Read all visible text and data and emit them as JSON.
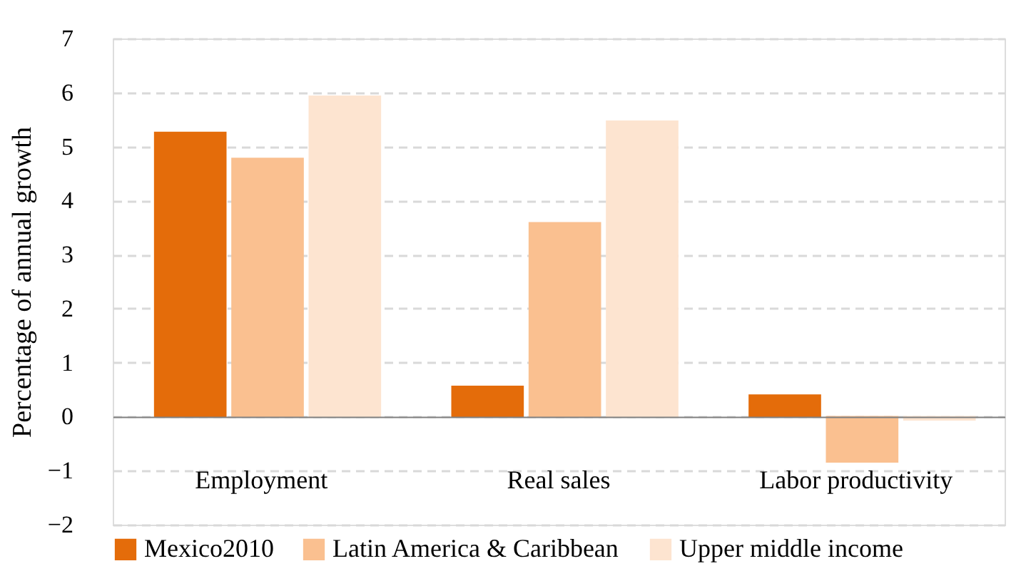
{
  "chart_data": {
    "type": "bar",
    "ylabel": "Percentage of annual growth",
    "categories": [
      "Employment",
      "Real sales",
      "Labor productivity"
    ],
    "series": [
      {
        "name": "Mexico2010",
        "color": "#e46c0a",
        "values": [
          5.26,
          0.56,
          0.4
        ]
      },
      {
        "name": "Latin America & Caribbean",
        "color": "#fac090",
        "values": [
          4.78,
          3.59,
          -0.84
        ]
      },
      {
        "name": "Upper middle income",
        "color": "#fde4d0",
        "values": [
          5.93,
          5.47,
          -0.06
        ]
      }
    ],
    "ylim": [
      -2,
      7
    ],
    "yticks": [
      -2,
      -1,
      0,
      1,
      2,
      3,
      4,
      5,
      6,
      7
    ],
    "grid": "y",
    "legend": "bottom"
  }
}
